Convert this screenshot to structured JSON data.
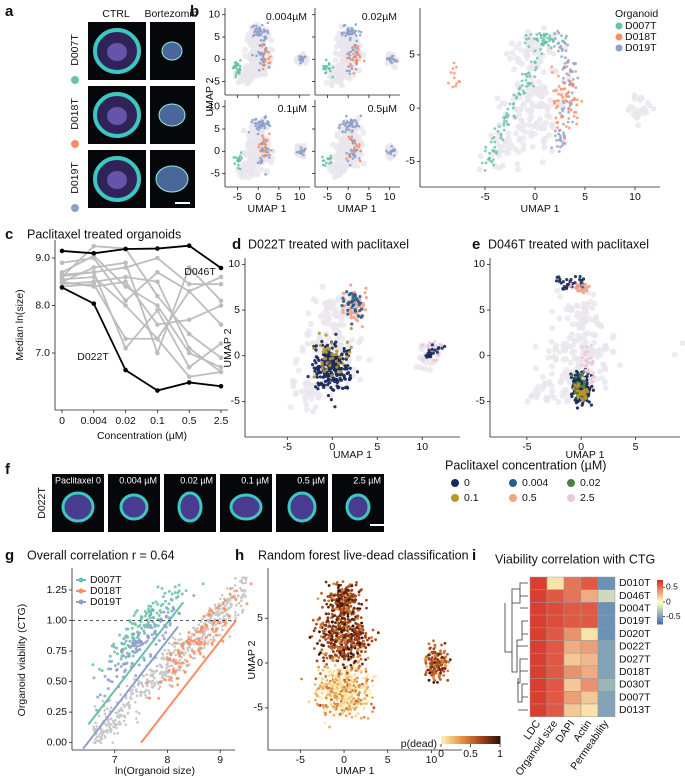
{
  "panel_letters": [
    "a",
    "b",
    "c",
    "d",
    "e",
    "f",
    "g",
    "h",
    "i"
  ],
  "panel_a": {
    "columns": [
      "CTRL",
      "Bortezomib"
    ],
    "rows": [
      "D007T",
      "D018T",
      "D019T"
    ],
    "row_colors": [
      "#66c2a5",
      "#fc8d62",
      "#8da0cb"
    ]
  },
  "panel_f": {
    "row": "D022T",
    "labels": [
      "Paclitaxel 0",
      "0.004 µM",
      "0.02 µM",
      "0.1 µM",
      "0.5 µM",
      "2.5 µM"
    ]
  },
  "chart_data": [
    {
      "type": "umap_grid",
      "panels": [
        "0.004µM",
        "0.02µM",
        "0.1µM",
        "0.5µM"
      ],
      "xlabel": "UMAP 1",
      "ylabel": "UMAP 2",
      "xlim": [
        -8,
        12.5
      ],
      "ylim": [
        -8,
        11.5
      ],
      "xticks": [
        -5,
        0,
        5,
        10
      ],
      "yticks": [
        -5,
        0,
        5,
        10
      ]
    },
    {
      "type": "umap",
      "xlabel": "UMAP 1",
      "xlim": [
        -11.5,
        12.5
      ],
      "ylim": [
        -7.4,
        9.4
      ],
      "xticks": [
        -5,
        0,
        5,
        10
      ],
      "yticks": [
        -5,
        0,
        5
      ],
      "legend_title": "Organoid",
      "series": [
        {
          "name": "D007T",
          "color": "#66c2a5"
        },
        {
          "name": "D018T",
          "color": "#fc8d62"
        },
        {
          "name": "D019T",
          "color": "#8da0cb"
        }
      ]
    },
    {
      "type": "line",
      "title": "Paclitaxel treated organoids",
      "xlabel": "Concentration (µM)",
      "ylabel": "Median ln(size)",
      "categories": [
        "0",
        "0.004",
        "0.02",
        "0.1",
        "0.5",
        "2.5"
      ],
      "ylim": [
        5.8,
        9.38
      ],
      "yticks": [
        {
          "value": 7,
          "label": "7.0"
        },
        {
          "value": 8,
          "label": "8.0"
        },
        {
          "value": 9,
          "label": "9.0"
        }
      ],
      "series": [
        {
          "color": "#bdbdbd",
          "values": [
            8.55,
            8.6,
            8.0,
            7.3,
            8.3,
            7.6
          ]
        },
        {
          "color": "#bdbdbd",
          "values": [
            8.6,
            9.25,
            9.2,
            8.2,
            7.4,
            6.9
          ]
        },
        {
          "color": "#bdbdbd",
          "values": [
            8.7,
            9.05,
            8.4,
            8.0,
            7.0,
            6.7
          ]
        },
        {
          "color": "#bdbdbd",
          "values": [
            8.5,
            8.8,
            8.9,
            7.0,
            8.8,
            8.1
          ]
        },
        {
          "color": "#bdbdbd",
          "values": [
            8.45,
            8.5,
            8.6,
            8.5,
            7.1,
            6.6
          ]
        },
        {
          "color": "#bdbdbd",
          "values": [
            8.62,
            8.7,
            7.1,
            7.9,
            6.7,
            7.2
          ]
        },
        {
          "color": "#bdbdbd",
          "values": [
            8.5,
            8.4,
            8.5,
            7.6,
            7.7,
            8.0
          ]
        },
        {
          "color": "#bdbdbd",
          "values": [
            8.9,
            9.0,
            8.1,
            8.7,
            8.3,
            8.6
          ]
        },
        {
          "color": "#bdbdbd",
          "values": [
            8.4,
            8.45,
            7.3,
            7.3,
            6.5,
            6.6
          ]
        },
        {
          "color": "#bdbdbd",
          "values": [
            8.65,
            8.7,
            8.8,
            9.0,
            8.45,
            8.45
          ]
        },
        {
          "name": "D046T",
          "color": "#000000",
          "values": [
            9.15,
            9.1,
            9.19,
            9.2,
            9.26,
            8.79
          ]
        },
        {
          "name": "D022T",
          "color": "#000000",
          "values": [
            8.38,
            8.04,
            6.64,
            6.21,
            6.38,
            6.3
          ]
        }
      ]
    },
    {
      "type": "umap",
      "title": "D022T treated with paclitaxel",
      "xlabel": "UMAP 1",
      "ylabel": "UMAP 2",
      "xlim": [
        -9.7,
        14.2
      ],
      "ylim": [
        -8.9,
        10.7
      ],
      "xticks": [
        -5,
        0,
        5,
        10
      ],
      "yticks": [
        -5,
        0,
        5,
        10
      ],
      "legend_title": "Paclitaxel concentration (µM)",
      "series": [
        {
          "name": "0",
          "color": "#1b2a5c"
        },
        {
          "name": "0.004",
          "color": "#2c5d8a"
        },
        {
          "name": "0.02",
          "color": "#4d7f45"
        },
        {
          "name": "0.1",
          "color": "#b8962a"
        },
        {
          "name": "0.5",
          "color": "#f1a38a"
        },
        {
          "name": "2.5",
          "color": "#ecc8d8"
        }
      ]
    },
    {
      "type": "umap",
      "title": "D046T treated with paclitaxel",
      "xlabel": "UMAP 1",
      "xlim": [
        -8.4,
        9.1
      ],
      "ylim": [
        -8.9,
        10.7
      ],
      "xticks": [
        -5,
        0,
        5
      ],
      "yticks": [
        -5,
        0,
        5,
        10
      ]
    },
    {
      "type": "scatter",
      "title": "Overall correlation r = 0.64",
      "xlabel": "ln(Organoid size)",
      "ylabel": "Organoid viability (CTG)",
      "xlim": [
        6.19,
        9.28
      ],
      "ylim": [
        -0.06,
        1.43
      ],
      "xticks": [
        7,
        8,
        9
      ],
      "yticks": [
        {
          "value": 0,
          "label": "0.00"
        },
        0.25,
        {
          "value": 0.5,
          "label": "0.50"
        },
        0.75,
        {
          "value": 1,
          "label": "1.00"
        },
        1.25
      ],
      "hline": 1,
      "series": [
        {
          "name": "D007T",
          "color": "#66c2a5"
        },
        {
          "name": "D018T",
          "color": "#fc8d62"
        },
        {
          "name": "D019T",
          "color": "#8da0cb"
        }
      ]
    },
    {
      "type": "umap",
      "title": "Random forest live-dead classification",
      "xlabel": "UMAP 1",
      "ylabel": "UMAP 2",
      "xlim": [
        -8.7,
        13.5
      ],
      "ylim": [
        -9.7,
        10.6
      ],
      "xticks": [
        -5,
        0,
        5,
        10
      ],
      "yticks": [
        -5,
        0,
        5
      ],
      "colorbar_label": "p(dead)",
      "clim": [
        0,
        1
      ],
      "cticks": [
        0,
        0.5,
        1
      ]
    },
    {
      "type": "heatmap",
      "title": "Viability correlation with CTG",
      "rows": [
        "D010T",
        "D046T",
        "D004T",
        "D019T",
        "D020T",
        "D022T",
        "D027T",
        "D018T",
        "D030T",
        "D007T",
        "D013T"
      ],
      "columns": [
        "LDC",
        "Organoid size",
        "DAPI",
        "Actin",
        "Permeability"
      ],
      "values": [
        [
          0.7,
          0.1,
          0.5,
          0.6,
          -0.6
        ],
        [
          0.7,
          0.6,
          0.5,
          0.3,
          -0.2
        ],
        [
          0.7,
          0.65,
          0.6,
          0.6,
          -0.6
        ],
        [
          0.7,
          0.65,
          0.6,
          0.6,
          -0.6
        ],
        [
          0.7,
          0.6,
          0.4,
          0.1,
          -0.6
        ],
        [
          0.7,
          0.6,
          0.3,
          0.35,
          -0.5
        ],
        [
          0.7,
          0.6,
          0.2,
          0.25,
          -0.5
        ],
        [
          0.7,
          0.6,
          0.4,
          0.3,
          -0.5
        ],
        [
          0.7,
          0.6,
          0.2,
          0.4,
          -0.4
        ],
        [
          0.7,
          0.6,
          0.35,
          0.2,
          -0.5
        ],
        [
          0.7,
          0.6,
          0.2,
          0.1,
          -0.5
        ]
      ],
      "clim": [
        -0.75,
        0.75
      ],
      "cticks": [
        0.5,
        0,
        -0.5
      ]
    }
  ]
}
